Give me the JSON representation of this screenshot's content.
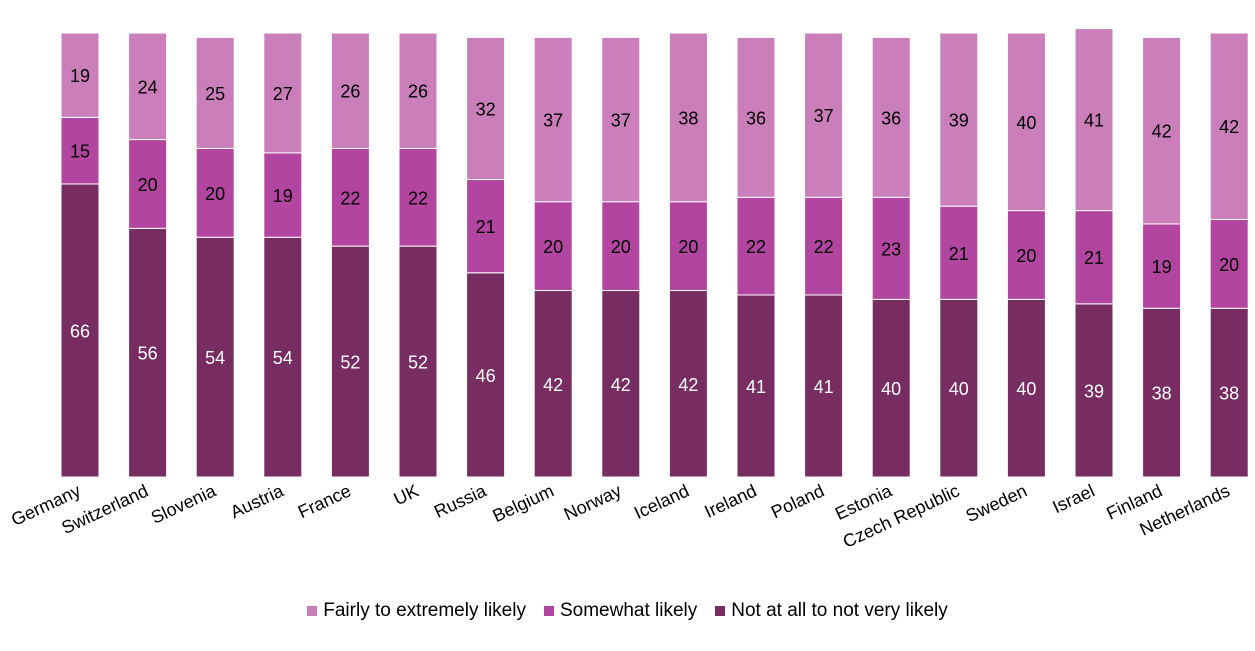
{
  "chart_data": {
    "type": "bar",
    "stacked": true,
    "categories": [
      "Germany",
      "Switzerland",
      "Slovenia",
      "Austria",
      "France",
      "UK",
      "Russia",
      "Belgium",
      "Norway",
      "Iceland",
      "Ireland",
      "Poland",
      "Estonia",
      "Czech Republic",
      "Sweden",
      "Israel",
      "Finland",
      "Netherlands"
    ],
    "series": [
      {
        "name": "Not at all to not very likely",
        "color": "#772c62",
        "label_color": "#ffffff",
        "values": [
          66,
          56,
          54,
          54,
          52,
          52,
          46,
          42,
          42,
          42,
          41,
          41,
          40,
          40,
          40,
          39,
          38,
          38
        ]
      },
      {
        "name": "Somewhat likely",
        "color": "#b2459f",
        "label_color": "#000000",
        "values": [
          15,
          20,
          20,
          19,
          22,
          22,
          21,
          20,
          20,
          20,
          22,
          22,
          23,
          21,
          20,
          21,
          19,
          20
        ]
      },
      {
        "name": "Fairly to extremely likely",
        "color": "#cb7fba",
        "label_color": "#000000",
        "values": [
          19,
          24,
          25,
          27,
          26,
          26,
          32,
          37,
          37,
          38,
          36,
          37,
          36,
          39,
          40,
          41,
          42,
          42
        ]
      }
    ],
    "legend_order": [
      "Fairly to extremely likely",
      "Somewhat likely",
      "Not at all to not very likely"
    ],
    "legend_position": "bottom",
    "ylim": [
      0,
      100
    ],
    "grid": false,
    "title": "",
    "xlabel": "",
    "ylabel": ""
  }
}
